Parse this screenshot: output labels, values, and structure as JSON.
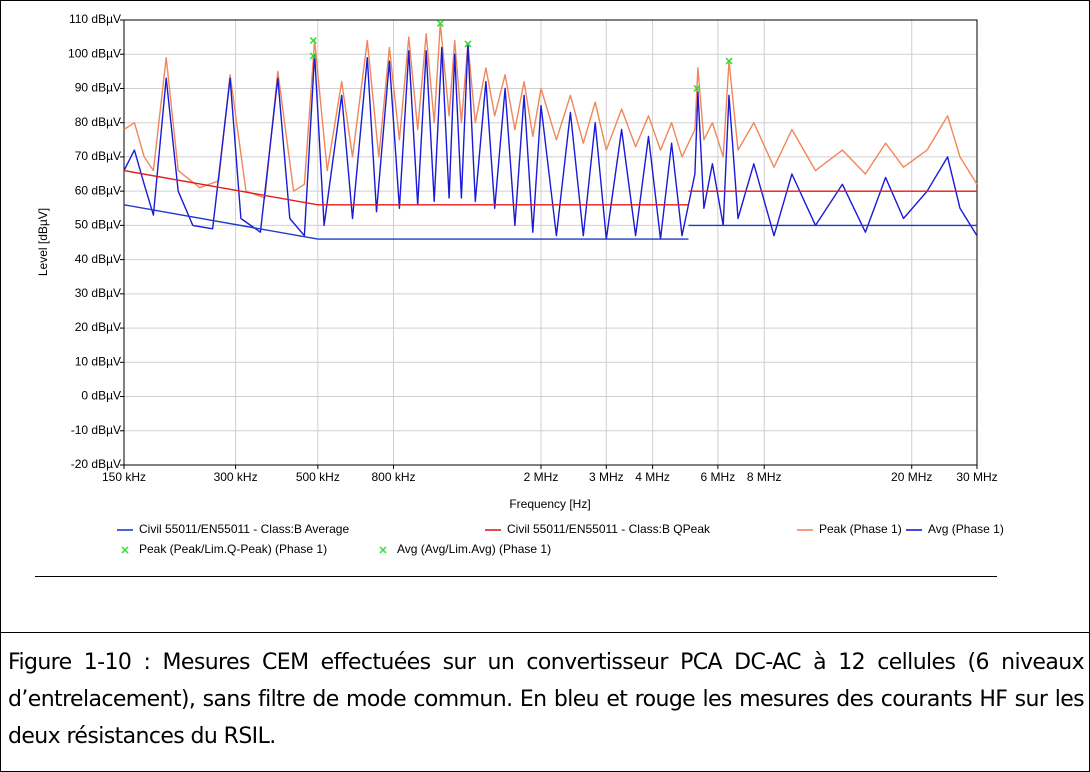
{
  "chart_data": {
    "type": "line",
    "xscale": "log",
    "xlabel": "Frequency [Hz]",
    "ylabel": "Level [dBµV]",
    "xlim": [
      150000,
      30000000
    ],
    "ylim": [
      -20,
      110
    ],
    "grid": true,
    "xticks": [
      {
        "value": 150000,
        "label": "150 kHz"
      },
      {
        "value": 300000,
        "label": "300 kHz"
      },
      {
        "value": 500000,
        "label": "500 kHz"
      },
      {
        "value": 800000,
        "label": "800 kHz"
      },
      {
        "value": 2000000,
        "label": "2 MHz"
      },
      {
        "value": 3000000,
        "label": "3 MHz"
      },
      {
        "value": 4000000,
        "label": "4 MHz"
      },
      {
        "value": 6000000,
        "label": "6 MHz"
      },
      {
        "value": 8000000,
        "label": "8 MHz"
      },
      {
        "value": 20000000,
        "label": "20 MHz"
      },
      {
        "value": 30000000,
        "label": "30 MHz"
      }
    ],
    "yticks": [
      {
        "value": 110,
        "label": "110 dBµV"
      },
      {
        "value": 100,
        "label": "100 dBµV"
      },
      {
        "value": 90,
        "label": "90 dBµV"
      },
      {
        "value": 80,
        "label": "80 dBµV"
      },
      {
        "value": 70,
        "label": "70 dBµV"
      },
      {
        "value": 60,
        "label": "60 dBµV"
      },
      {
        "value": 50,
        "label": "50 dBµV"
      },
      {
        "value": 40,
        "label": "40 dBµV"
      },
      {
        "value": 30,
        "label": "30 dBµV"
      },
      {
        "value": 20,
        "label": "20 dBµV"
      },
      {
        "value": 10,
        "label": "10 dBµV"
      },
      {
        "value": 0,
        "label": "0 dBµV"
      },
      {
        "value": -10,
        "label": "-10 dBµV"
      },
      {
        "value": -20,
        "label": "-20 dBµV"
      }
    ],
    "series": [
      {
        "name": "Peak (Phase 1)",
        "color": "#f0875a",
        "style": "line",
        "x": [
          150000,
          160000,
          170000,
          180000,
          195000,
          210000,
          240000,
          270000,
          290000,
          320000,
          360000,
          390000,
          430000,
          460000,
          490000,
          530000,
          580000,
          620000,
          680000,
          730000,
          780000,
          830000,
          880000,
          930000,
          980000,
          1030000,
          1070000,
          1130000,
          1170000,
          1220000,
          1270000,
          1330000,
          1420000,
          1500000,
          1600000,
          1700000,
          1800000,
          1900000,
          2000000,
          2200000,
          2400000,
          2600000,
          2800000,
          3000000,
          3300000,
          3600000,
          3900000,
          4200000,
          4500000,
          4800000,
          5200000,
          5300000,
          5500000,
          5800000,
          6200000,
          6430000,
          6800000,
          7500000,
          8500000,
          9500000,
          11000000,
          13000000,
          15000000,
          17000000,
          19000000,
          22000000,
          25000000,
          27000000,
          30000000
        ],
        "values": [
          78,
          80,
          70,
          66,
          99,
          66,
          61,
          63,
          94,
          60,
          58,
          95,
          60,
          62,
          104,
          66,
          92,
          70,
          104,
          70,
          102,
          75,
          105,
          78,
          106,
          80,
          109,
          82,
          104,
          80,
          103,
          80,
          96,
          82,
          94,
          78,
          92,
          76,
          90,
          75,
          88,
          74,
          86,
          72,
          84,
          73,
          82,
          72,
          80,
          70,
          78,
          96,
          75,
          80,
          70,
          98,
          72,
          80,
          67,
          78,
          66,
          72,
          65,
          74,
          67,
          72,
          82,
          70,
          62
        ]
      },
      {
        "name": "Avg (Phase 1)",
        "color": "#1a1ad8",
        "style": "line",
        "x": [
          150000,
          160000,
          170000,
          180000,
          195000,
          210000,
          230000,
          260000,
          290000,
          310000,
          350000,
          390000,
          420000,
          460000,
          490000,
          520000,
          580000,
          620000,
          680000,
          720000,
          780000,
          830000,
          880000,
          930000,
          980000,
          1030000,
          1080000,
          1130000,
          1170000,
          1220000,
          1270000,
          1330000,
          1420000,
          1500000,
          1600000,
          1700000,
          1800000,
          1900000,
          2000000,
          2200000,
          2400000,
          2600000,
          2800000,
          3000000,
          3300000,
          3600000,
          3900000,
          4200000,
          4500000,
          4800000,
          5200000,
          5300000,
          5500000,
          5800000,
          6200000,
          6430000,
          6800000,
          7500000,
          8500000,
          9500000,
          11000000,
          13000000,
          15000000,
          17000000,
          19000000,
          22000000,
          25000000,
          27000000,
          30000000
        ],
        "values": [
          66,
          72,
          62,
          53,
          93,
          60,
          50,
          49,
          93,
          52,
          48,
          93,
          52,
          47,
          100,
          50,
          88,
          52,
          99,
          54,
          98,
          55,
          101,
          56,
          101,
          57,
          102,
          58,
          100,
          58,
          103,
          57,
          92,
          55,
          90,
          50,
          88,
          48,
          85,
          47,
          83,
          47,
          80,
          46,
          78,
          47,
          76,
          46,
          74,
          47,
          65,
          89,
          55,
          68,
          50,
          88,
          52,
          68,
          47,
          65,
          50,
          62,
          48,
          64,
          52,
          60,
          70,
          55,
          47
        ]
      },
      {
        "name": "Civil 55011/EN55011 - Class:B Average",
        "color": "#1f3cc8",
        "style": "line",
        "x": [
          150000,
          500000,
          5000000,
          5000000,
          5000000,
          30000000
        ],
        "values": [
          56,
          46,
          46,
          null,
          50,
          50
        ]
      },
      {
        "name": "Civil 55011/EN55011 - Class:B QPeak",
        "color": "#e01e1e",
        "style": "line",
        "x": [
          150000,
          500000,
          5000000,
          5000000,
          5000000,
          30000000
        ],
        "values": [
          66,
          56,
          56,
          null,
          60,
          60
        ]
      },
      {
        "name": "Peak (Peak/Lim.Q-Peak) (Phase 1)",
        "color": "#33dd33",
        "style": "marker",
        "x": [
          486000,
          1070000,
          1270000,
          6430000
        ],
        "values": [
          104,
          109,
          103,
          98
        ]
      },
      {
        "name": "Avg (Avg/Lim.Avg) (Phase 1)",
        "color": "#33dd33",
        "style": "marker",
        "x": [
          486000,
          5270000
        ],
        "values": [
          99.5,
          90
        ]
      }
    ]
  },
  "caption": "Figure 1-10 : Mesures CEM effectuées sur un convertisseur PCA DC-AC à 12 cellules (6 niveaux d’entrelacement), sans filtre de mode commun. En bleu et rouge les mesures des courants HF sur les deux résistances du RSIL."
}
